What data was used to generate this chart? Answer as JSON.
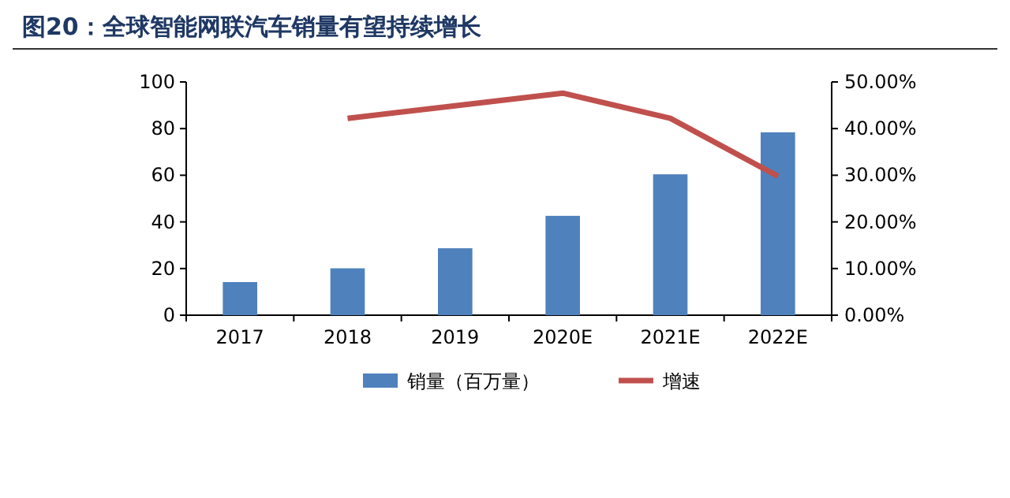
{
  "chart_data": {
    "type": "bar",
    "title": "图20：全球智能网联汽车销量有望持续增长",
    "categories": [
      "2017",
      "2018",
      "2019",
      "2020E",
      "2021E",
      "2022E"
    ],
    "series": [
      {
        "name": "销量（百万量）",
        "color": "#4f81bd",
        "values": [
          14.2,
          20.1,
          28.7,
          42.6,
          60.4,
          78.4
        ]
      },
      {
        "name": "增速",
        "type": "line",
        "axis": "y2",
        "color": "#c0504d",
        "values": [
          null,
          42.2,
          44.9,
          47.6,
          42.2,
          29.8
        ]
      }
    ],
    "ylim": [
      0,
      100
    ],
    "yticks": [
      0,
      20,
      40,
      60,
      80,
      100
    ],
    "y2lim": [
      0,
      50
    ],
    "y2ticks": [
      {
        "value": 0,
        "label": "0.00%"
      },
      {
        "value": 10,
        "label": "10.00%"
      },
      {
        "value": 20,
        "label": "20.00%"
      },
      {
        "value": 30,
        "label": "30.00%"
      },
      {
        "value": 40,
        "label": "40.00%"
      },
      {
        "value": 50,
        "label": "50.00%"
      }
    ],
    "legend": "bottom"
  }
}
